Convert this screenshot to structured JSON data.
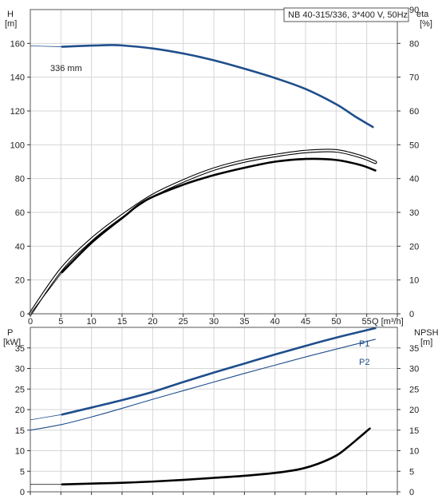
{
  "chart_data": [
    {
      "type": "line",
      "title": "NB 40-315/336, 3*400 V, 50Hz",
      "xlabel": "Q [m³/h]",
      "ylabel_left": "H",
      "ylabel_left_unit": "[m]",
      "ylabel_right": "eta",
      "ylabel_right_unit": "[%]",
      "xlim": [
        0,
        60
      ],
      "ylim_left": [
        0,
        180
      ],
      "ylim_right": [
        0,
        90
      ],
      "x_ticks": [
        "0",
        "5",
        "10",
        "15",
        "20",
        "25",
        "30",
        "35",
        "40",
        "45",
        "50",
        "55",
        "60"
      ],
      "x_ticks_shown": [
        "0",
        "5",
        "10",
        "15",
        "20",
        "25",
        "30",
        "35",
        "40",
        "45",
        "50",
        "55"
      ],
      "y_left_ticks": [
        "0",
        "20",
        "40",
        "60",
        "80",
        "100",
        "120",
        "140",
        "160"
      ],
      "y_right_ticks": [
        "0",
        "10",
        "20",
        "30",
        "40",
        "50",
        "60",
        "70",
        "80",
        "90"
      ],
      "grid": true,
      "annotations": [
        "336 mm"
      ],
      "series": [
        {
          "name": "336 mm",
          "axis": "left",
          "color": "#1f4e8c",
          "style": "thick",
          "x": [
            0,
            5.2,
            10,
            13,
            15,
            20,
            25,
            30,
            35,
            40,
            45,
            50,
            53,
            56
          ],
          "y": [
            158.5,
            158.0,
            158.7,
            159.0,
            158.8,
            157.0,
            154.0,
            150.0,
            145.0,
            139.5,
            133.0,
            124.0,
            117.0,
            110.5
          ],
          "thin_prefix_until_x": 5.2
        },
        {
          "axis": "right",
          "color": "#000000",
          "style": "double",
          "x": [
            0,
            5,
            10,
            15,
            20,
            25,
            30,
            35,
            40,
            45,
            50,
            54,
            56.4
          ],
          "y": [
            0,
            13,
            22,
            29,
            35,
            39.3,
            42.8,
            45.2,
            46.8,
            48.0,
            48.2,
            46.5,
            44.8
          ]
        },
        {
          "axis": "right",
          "color": "#000000",
          "style": "thick",
          "x": [
            0,
            5.2,
            10,
            15,
            19,
            25,
            30,
            35,
            40,
            45,
            50,
            54,
            56.4
          ],
          "y": [
            0,
            12.3,
            21,
            28.3,
            33.7,
            38.2,
            41.0,
            43.2,
            45.0,
            45.8,
            45.5,
            44.0,
            42.4
          ],
          "thin_prefix_until_x": 5.2
        }
      ]
    },
    {
      "type": "line",
      "ylabel_left": "P",
      "ylabel_left_unit": "[kW]",
      "ylabel_right": "NPSH",
      "ylabel_right_unit": "[m]",
      "xlim": [
        0,
        60
      ],
      "ylim_left": [
        0,
        40
      ],
      "ylim_right": [
        0,
        40
      ],
      "y_left_ticks": [
        "0",
        "5",
        "10",
        "15",
        "20",
        "25",
        "30",
        "35"
      ],
      "y_right_ticks": [
        "0",
        "5",
        "10",
        "15",
        "20",
        "25",
        "30",
        "35"
      ],
      "grid": true,
      "series": [
        {
          "name": "P1",
          "axis": "left",
          "color": "#1f4e8c",
          "style": "thick",
          "x": [
            0,
            5.2,
            10,
            15,
            20,
            25,
            30,
            35,
            40,
            45,
            50,
            56.4
          ],
          "y": [
            17.5,
            18.8,
            20.5,
            22.3,
            24.3,
            26.7,
            29.0,
            31.2,
            33.4,
            35.5,
            37.5,
            39.8
          ],
          "thin_prefix_until_x": 5.2
        },
        {
          "name": "P2",
          "axis": "left",
          "color": "#1f4e8c",
          "style": "thin",
          "x": [
            0,
            5.2,
            10,
            15,
            20,
            25,
            30,
            35,
            40,
            45,
            50,
            56.4
          ],
          "y": [
            15.0,
            16.4,
            18.2,
            20.3,
            22.5,
            24.6,
            26.7,
            28.8,
            30.8,
            32.8,
            34.7,
            37.1
          ]
        },
        {
          "name": "NPSH",
          "axis": "right",
          "color": "#000000",
          "style": "thick",
          "x": [
            0,
            5.2,
            10,
            15,
            20,
            25,
            30,
            35,
            40,
            44,
            47,
            50,
            52,
            54,
            55.5
          ],
          "y": [
            1.8,
            1.8,
            2.0,
            2.2,
            2.5,
            2.9,
            3.4,
            3.9,
            4.6,
            5.5,
            6.8,
            8.8,
            11.0,
            13.5,
            15.4
          ],
          "thin_prefix_until_x": 5.2
        }
      ]
    }
  ]
}
